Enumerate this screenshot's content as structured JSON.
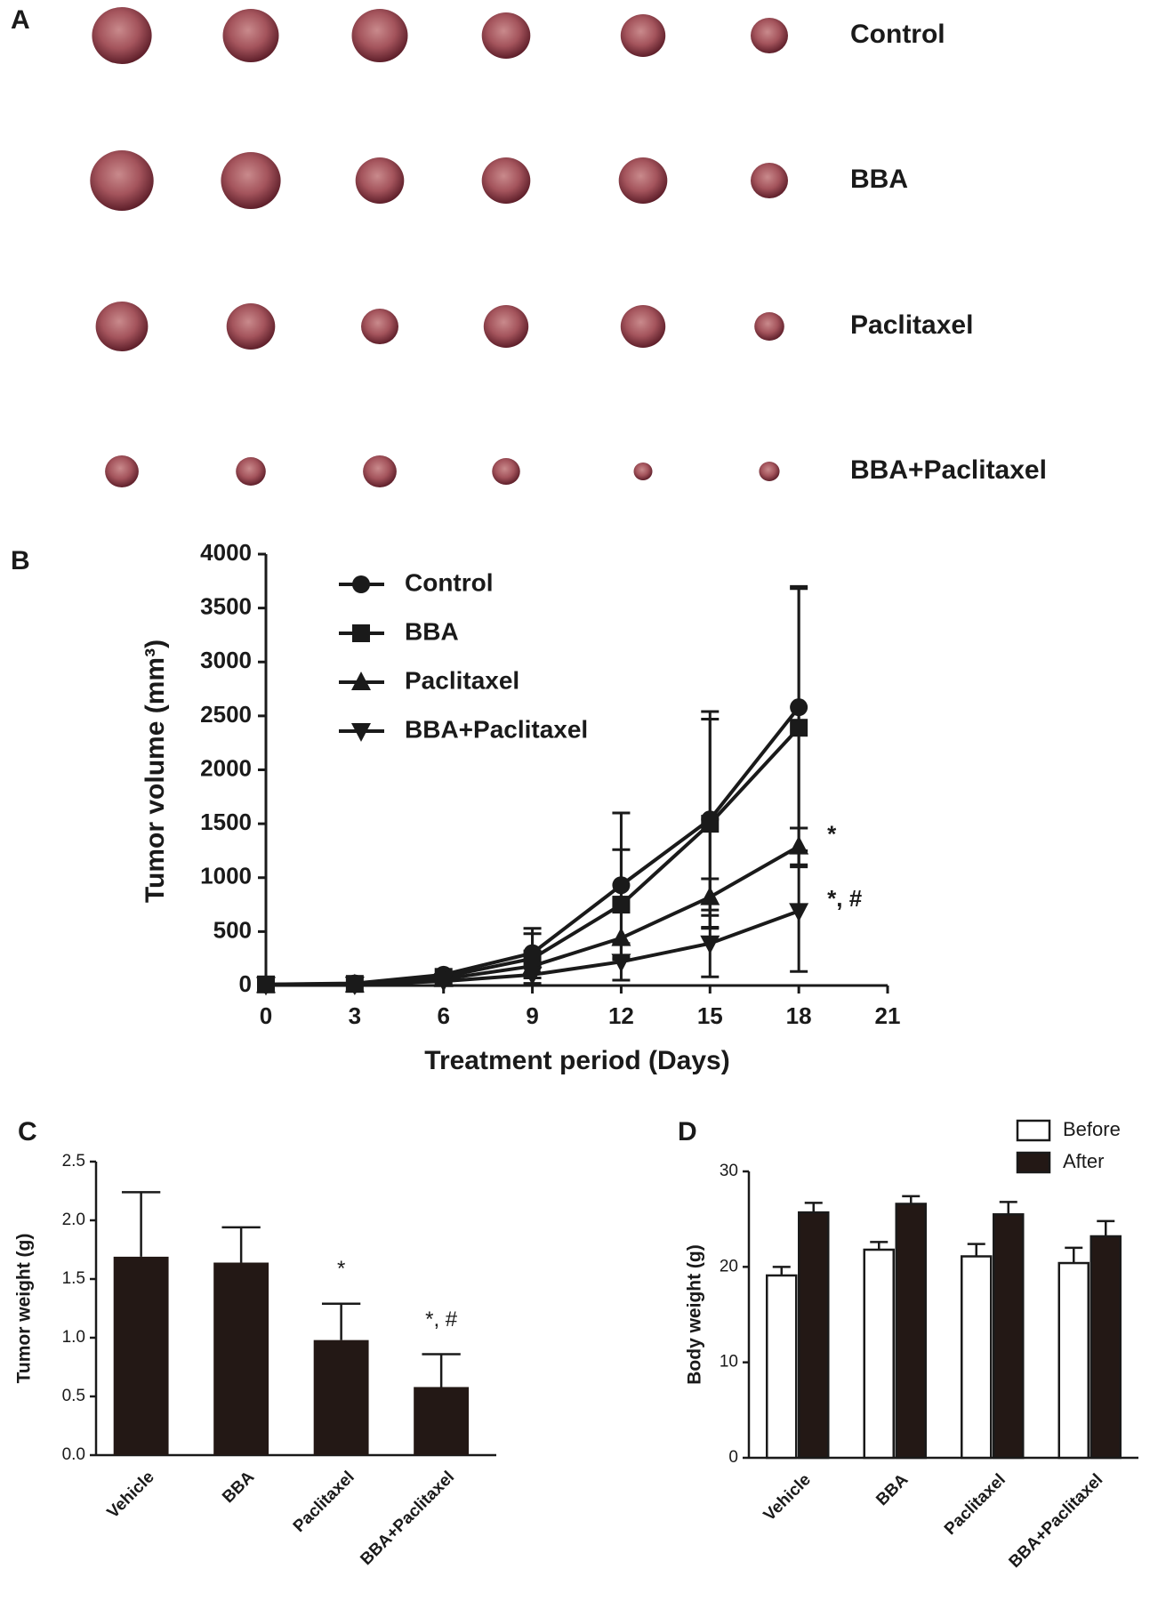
{
  "panel_a": {
    "label": "A",
    "rows": [
      "Control",
      "BBA",
      "Paclitaxel",
      "BBA+Paclitaxel"
    ]
  },
  "chart_data": [
    {
      "type": "line",
      "panel_label": "B",
      "x": [
        0,
        3,
        6,
        9,
        12,
        15,
        18
      ],
      "xlim": [
        0,
        21
      ],
      "xticks": [
        0,
        3,
        6,
        9,
        12,
        15,
        18,
        21
      ],
      "ylim": [
        0,
        4000
      ],
      "yticks": [
        0,
        500,
        1000,
        1500,
        2000,
        2500,
        3000,
        3500,
        4000
      ],
      "xlabel": "Treatment period (Days)",
      "ylabel": "Tumor volume (mm³)",
      "series": [
        {
          "name": "Control",
          "color": "#1a1a1a",
          "marker": "circle",
          "values": [
            10,
            20,
            100,
            300,
            930,
            1540,
            2580
          ],
          "errors": [
            0,
            0,
            0,
            230,
            670,
            1000,
            1120
          ]
        },
        {
          "name": "BBA",
          "color": "#1a1a1a",
          "marker": "square",
          "values": [
            10,
            15,
            80,
            250,
            750,
            1500,
            2390
          ],
          "errors": [
            0,
            0,
            0,
            230,
            510,
            970,
            1290
          ]
        },
        {
          "name": "Paclitaxel",
          "color": "#1a1a1a",
          "marker": "triangle-up",
          "values": [
            5,
            10,
            60,
            180,
            440,
            820,
            1290
          ],
          "errors": [
            0,
            0,
            0,
            0,
            0,
            170,
            170
          ],
          "annotation": "*"
        },
        {
          "name": "BBA+Paclitaxel",
          "color": "#1a1a1a",
          "marker": "triangle-down",
          "values": [
            5,
            8,
            40,
            100,
            220,
            390,
            690
          ],
          "errors": [
            0,
            0,
            0,
            0,
            170,
            310,
            560
          ],
          "annotation": "*, #"
        }
      ]
    },
    {
      "type": "bar",
      "panel_label": "C",
      "categories": [
        "Vehicle",
        "BBA",
        "Paclitaxel",
        "BBA+Paclitaxel"
      ],
      "values": [
        1.69,
        1.64,
        0.98,
        0.58
      ],
      "errors": [
        0.55,
        0.3,
        0.31,
        0.28
      ],
      "annotations": [
        null,
        null,
        "*",
        "*, #"
      ],
      "color": "#231815",
      "ylim": [
        0,
        2.5
      ],
      "yticks": [
        {
          "value": 0,
          "label": "0.0"
        },
        0.5,
        {
          "value": 1,
          "label": "1.0"
        },
        1.5,
        {
          "value": 2,
          "label": "2.0"
        },
        2.5
      ],
      "ylabel": "Tumor weight (g)"
    },
    {
      "type": "grouped_bar",
      "panel_label": "D",
      "categories": [
        "Vehicle",
        "BBA",
        "Paclitaxel",
        "BBA+Paclitaxel"
      ],
      "series": [
        {
          "name": "Before",
          "color": "#ffffff",
          "values": [
            19.1,
            21.8,
            21.1,
            20.4
          ],
          "errors": [
            0.9,
            0.8,
            1.3,
            1.6
          ]
        },
        {
          "name": "After",
          "color": "#231815",
          "values": [
            25.7,
            26.6,
            25.5,
            23.2
          ],
          "errors": [
            1.0,
            0.8,
            1.3,
            1.6
          ]
        }
      ],
      "ylim": [
        0,
        30
      ],
      "yticks": [
        0,
        10,
        20,
        30
      ],
      "ylabel": "Body weight (g)",
      "legend": "top-right"
    }
  ]
}
